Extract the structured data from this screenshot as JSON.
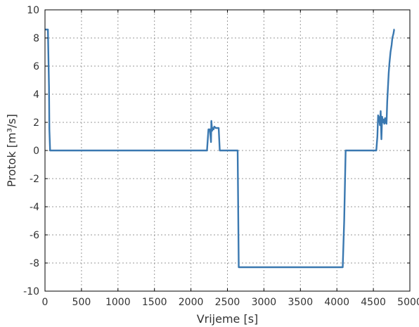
{
  "chart_data": {
    "type": "line",
    "title": "",
    "xlabel": "Vrijeme [s]",
    "ylabel": "Protok [m³/s]",
    "xlim": [
      0,
      5000
    ],
    "ylim": [
      -10,
      10
    ],
    "xticks": [
      0,
      500,
      1000,
      1500,
      2000,
      2500,
      3000,
      3500,
      4000,
      4500,
      5000
    ],
    "yticks": [
      -10,
      -8,
      -6,
      -4,
      -2,
      0,
      2,
      4,
      6,
      8,
      10
    ],
    "grid": true,
    "line_color": "#3a78b0",
    "series": [
      {
        "name": "",
        "x": [
          0,
          40,
          55,
          60,
          70,
          2220,
          2240,
          2245,
          2260,
          2275,
          2280,
          2290,
          2300,
          2310,
          2320,
          2340,
          2360,
          2380,
          2395,
          2400,
          2620,
          2640,
          2655,
          4080,
          4100,
          4120,
          4540,
          4555,
          4565,
          4580,
          4590,
          4600,
          4610,
          4620,
          4630,
          4640,
          4650,
          4660,
          4670,
          4680,
          4690,
          4700,
          4710,
          4720,
          4735,
          4750,
          4760,
          4775,
          4785,
          4790
        ],
        "y": [
          8.6,
          8.6,
          4.5,
          1.5,
          0.0,
          0.0,
          1.5,
          1.5,
          1.5,
          0.6,
          2.1,
          1.4,
          1.6,
          1.5,
          1.7,
          1.6,
          1.6,
          1.6,
          0.0,
          0.0,
          0.0,
          0.0,
          -8.3,
          -8.3,
          -5.0,
          0.0,
          0.0,
          1.0,
          2.5,
          2.3,
          1.8,
          2.8,
          0.8,
          2.4,
          2.0,
          2.2,
          1.9,
          2.3,
          2.0,
          1.9,
          3.5,
          4.5,
          5.5,
          6.2,
          7.0,
          7.5,
          8.0,
          8.3,
          8.6,
          8.6
        ]
      }
    ]
  }
}
